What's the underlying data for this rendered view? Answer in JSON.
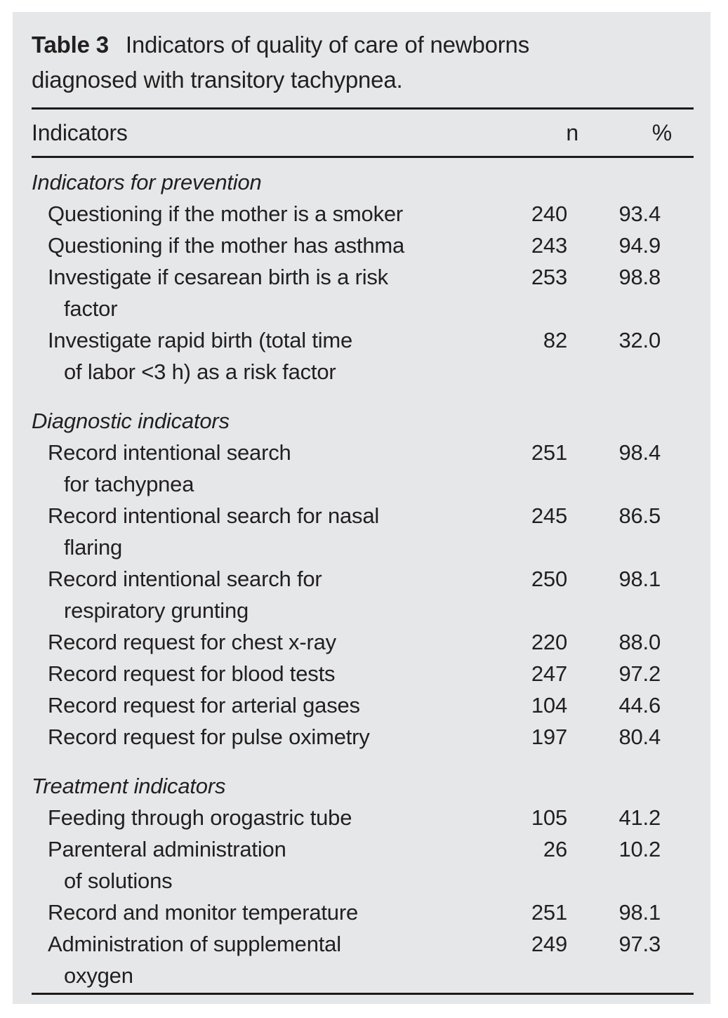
{
  "caption": {
    "label": "Table 3",
    "text": "Indicators of quality of care of newborns diagnosed with transitory tachypnea."
  },
  "columns": {
    "indicator": "Indicators",
    "n": "n",
    "pct": "%"
  },
  "sections": [
    {
      "header": "Indicators for prevention",
      "rows": [
        {
          "lines": [
            "Questioning if the mother is a smoker"
          ],
          "n": "240",
          "pct": "93.4"
        },
        {
          "lines": [
            "Questioning if the mother has asthma"
          ],
          "n": "243",
          "pct": "94.9"
        },
        {
          "lines": [
            "Investigate if cesarean birth is a risk",
            "factor"
          ],
          "n": "253",
          "pct": "98.8"
        },
        {
          "lines": [
            "Investigate rapid birth (total time",
            "of labor <3 h) as a risk factor"
          ],
          "n": "82",
          "pct": "32.0"
        }
      ]
    },
    {
      "header": "Diagnostic indicators",
      "rows": [
        {
          "lines": [
            "Record intentional search",
            "for tachypnea"
          ],
          "n": "251",
          "pct": "98.4"
        },
        {
          "lines": [
            "Record intentional search for nasal",
            "flaring"
          ],
          "n": "245",
          "pct": "86.5"
        },
        {
          "lines": [
            "Record intentional search for",
            "respiratory grunting"
          ],
          "n": "250",
          "pct": "98.1"
        },
        {
          "lines": [
            "Record request for chest x-ray"
          ],
          "n": "220",
          "pct": "88.0"
        },
        {
          "lines": [
            "Record request for blood tests"
          ],
          "n": "247",
          "pct": "97.2"
        },
        {
          "lines": [
            "Record request for arterial gases"
          ],
          "n": "104",
          "pct": "44.6"
        },
        {
          "lines": [
            "Record request for pulse oximetry"
          ],
          "n": "197",
          "pct": "80.4"
        }
      ]
    },
    {
      "header": "Treatment indicators",
      "rows": [
        {
          "lines": [
            "Feeding through orogastric tube"
          ],
          "n": "105",
          "pct": "41.2"
        },
        {
          "lines": [
            "Parenteral administration",
            "of solutions"
          ],
          "n": "26",
          "pct": "10.2"
        },
        {
          "lines": [
            "Record and monitor temperature"
          ],
          "n": "251",
          "pct": "98.1"
        },
        {
          "lines": [
            "Administration of supplemental",
            "oxygen"
          ],
          "n": "249",
          "pct": "97.3"
        }
      ]
    }
  ],
  "colors": {
    "panel_background": "#e6e7e8",
    "text": "#221f20",
    "rule": "#1d1a1b"
  }
}
